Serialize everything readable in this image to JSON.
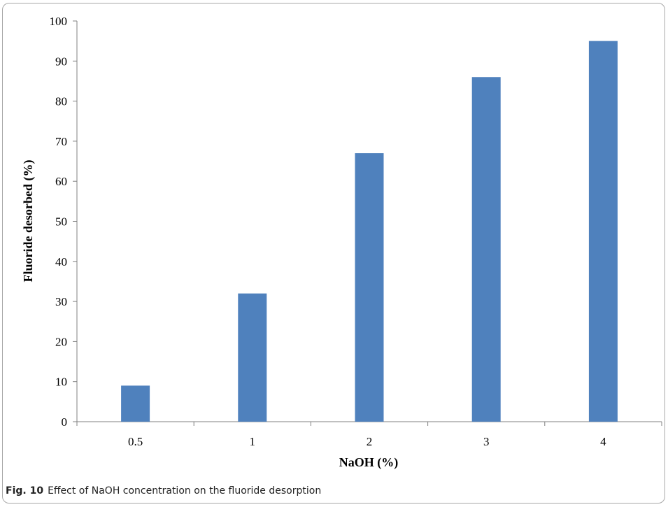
{
  "chart_data": {
    "type": "bar",
    "categories": [
      "0.5",
      "1",
      "2",
      "3",
      "4"
    ],
    "values": [
      9,
      32,
      67,
      86,
      95
    ],
    "xlabel": "NaOH (%)",
    "ylabel": "Fluoride desorbed  (%)",
    "ylim": [
      0,
      100
    ],
    "yticks": [
      0,
      10,
      20,
      30,
      40,
      50,
      60,
      70,
      80,
      90,
      100
    ],
    "grid": false,
    "legend": "none",
    "bar_color": "#4f81bd"
  },
  "caption": {
    "label": "Fig. 10",
    "text": "Effect of NaOH concentration on the fluoride desorption"
  }
}
